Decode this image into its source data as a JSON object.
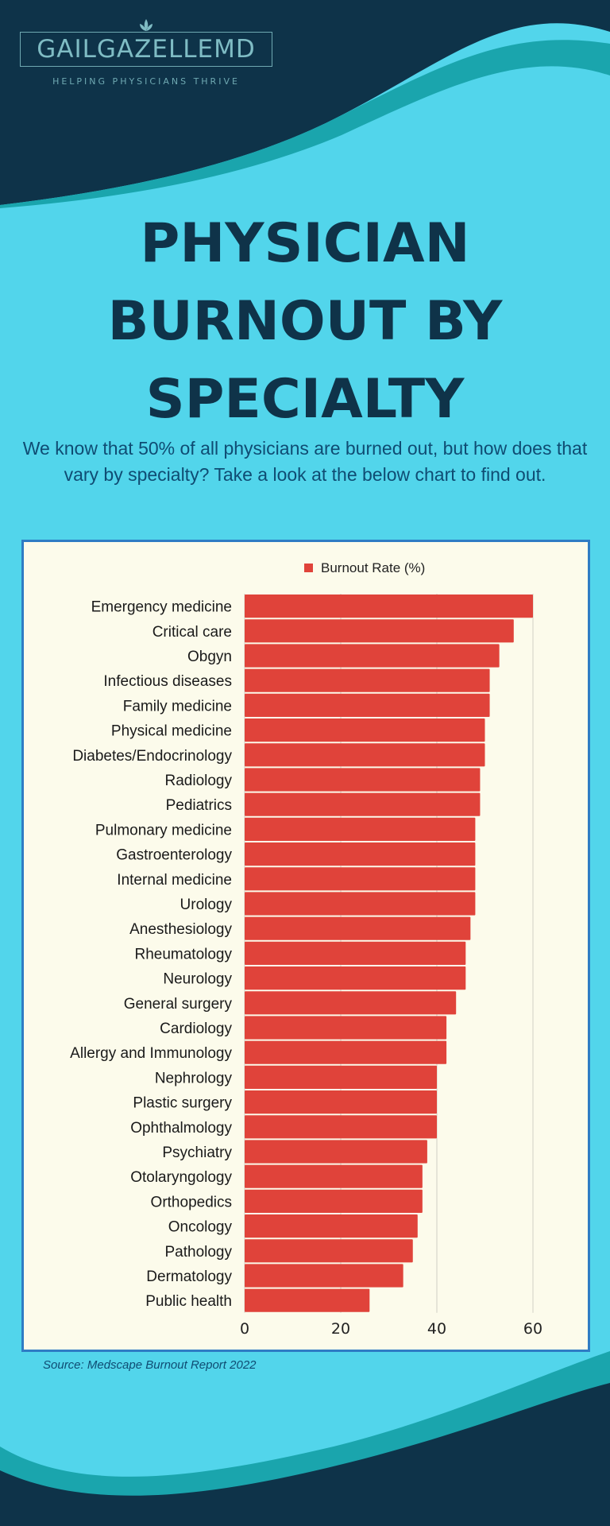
{
  "brand": {
    "name": "GAILGAZELLEMD",
    "tagline": "HELPING PHYSICIANS THRIVE"
  },
  "header": {
    "title_lines": [
      "PHYSICIAN",
      "BURNOUT BY",
      "SPECIALTY"
    ],
    "subtitle": "We know that 50% of all physicians are burned out, but how does that vary by specialty? Take a look at the below chart to find out."
  },
  "colors": {
    "dark": "#0e3349",
    "light": "#52d5eb",
    "teal": "#1aa5ad",
    "bar": "#e0433a",
    "chart_bg": "#fcfbeb",
    "chart_border": "#2f7cc4"
  },
  "chart_data": {
    "type": "bar",
    "orientation": "horizontal",
    "categories": [
      "Emergency medicine",
      "Critical care",
      "Obgyn",
      "Infectious diseases",
      "Family medicine",
      "Physical medicine",
      "Diabetes/Endocrinology",
      "Radiology",
      "Pediatrics",
      "Pulmonary medicine",
      "Gastroenterology",
      "Internal medicine",
      "Urology",
      "Anesthesiology",
      "Rheumatology",
      "Neurology",
      "General surgery",
      "Cardiology",
      "Allergy and Immunology",
      "Nephrology",
      "Plastic surgery",
      "Ophthalmology",
      "Psychiatry",
      "Otolaryngology",
      "Orthopedics",
      "Oncology",
      "Pathology",
      "Dermatology",
      "Public health"
    ],
    "series": [
      {
        "name": "Burnout Rate (%)",
        "values": [
          60,
          56,
          53,
          51,
          51,
          50,
          50,
          49,
          49,
          48,
          48,
          48,
          48,
          47,
          46,
          46,
          44,
          42,
          42,
          40,
          40,
          40,
          38,
          37,
          37,
          36,
          35,
          33,
          26
        ]
      }
    ],
    "xlim": [
      0,
      60
    ],
    "xticks": [
      "0",
      "20",
      "40",
      "60"
    ],
    "grid": true,
    "legend": "top"
  },
  "footer": {
    "source": "Source: Medscape Burnout Report 2022"
  }
}
